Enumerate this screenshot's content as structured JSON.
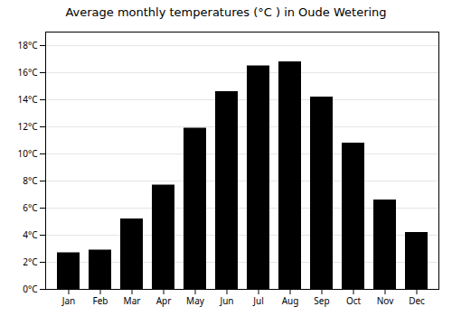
{
  "chart_data": {
    "type": "bar",
    "title": "Average monthly temperatures (°C ) in Oude Wetering",
    "categories": [
      "Jan",
      "Feb",
      "Mar",
      "Apr",
      "May",
      "Jun",
      "Jul",
      "Aug",
      "Sep",
      "Oct",
      "Nov",
      "Dec"
    ],
    "values": [
      2.7,
      2.9,
      5.2,
      7.7,
      11.9,
      14.6,
      16.5,
      16.8,
      14.2,
      10.8,
      6.6,
      4.2
    ],
    "ylim": [
      0,
      19
    ],
    "yticks": [
      {
        "value": 0,
        "label": "0°C"
      },
      {
        "value": 2,
        "label": "2°C"
      },
      {
        "value": 4,
        "label": "4°C"
      },
      {
        "value": 6,
        "label": "6°C"
      },
      {
        "value": 8,
        "label": "8°C"
      },
      {
        "value": 10,
        "label": "10°C"
      },
      {
        "value": 12,
        "label": "12°C"
      },
      {
        "value": 14,
        "label": "14°C"
      },
      {
        "value": 16,
        "label": "16°C"
      },
      {
        "value": 18,
        "label": "18°C"
      }
    ],
    "grid": true
  }
}
